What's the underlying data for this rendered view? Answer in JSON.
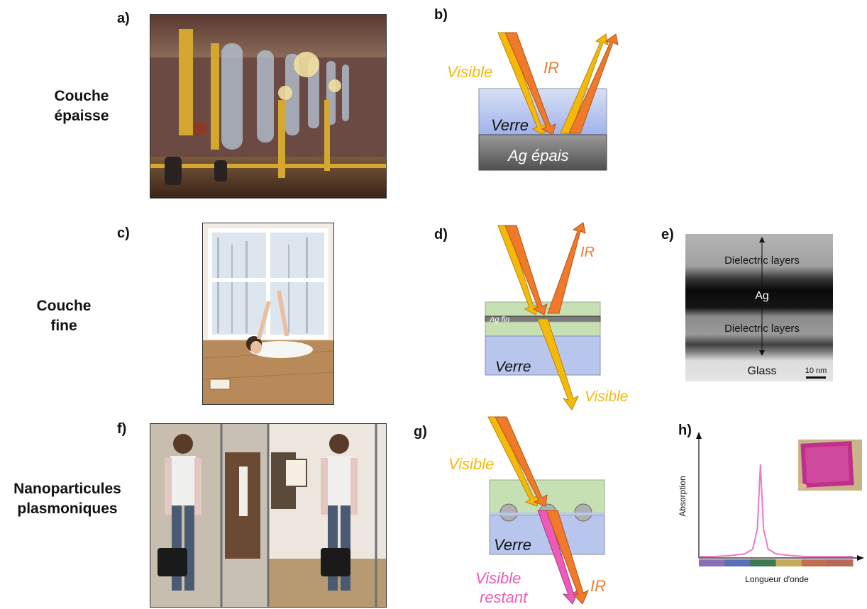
{
  "rows": [
    {
      "line1": "Couche",
      "line2": "épaisse"
    },
    {
      "line1": "Couche",
      "line2": "fine"
    },
    {
      "line1": "Nanoparticules",
      "line2": "plasmoniques"
    }
  ],
  "panels": {
    "a": "a)",
    "b": "b)",
    "c": "c)",
    "d": "d)",
    "e": "e)",
    "f": "f)",
    "g": "g)",
    "h": "h)"
  },
  "diagram_b": {
    "visible": "Visible",
    "ir": "IR",
    "glass": "Verre",
    "silver": "Ag épais"
  },
  "diagram_d": {
    "ir": "IR",
    "silver": "Ag fin",
    "glass": "Verre",
    "visible": "Visible"
  },
  "micrograph_e": {
    "top": "Dielectric layers",
    "middle": "Ag",
    "bottom": "Dielectric layers",
    "substrate": "Glass",
    "scale": "10 nm"
  },
  "diagram_g": {
    "visible": "Visible",
    "glass": "Verre",
    "remaining1": "Visible",
    "remaining2": "restant",
    "ir": "IR"
  },
  "chart_data": {
    "type": "line",
    "xlabel": "Longueur d'onde",
    "ylabel": "Absorption",
    "series": [
      {
        "x": [
          0,
          0.1,
          0.2,
          0.3,
          0.35,
          0.38,
          0.4,
          0.42,
          0.45,
          0.5,
          0.6,
          0.7,
          0.8,
          0.9,
          1.0
        ],
        "values": [
          0.0,
          0.0,
          0.01,
          0.03,
          0.08,
          0.3,
          1.0,
          0.3,
          0.08,
          0.03,
          0.01,
          0.0,
          0.0,
          0.0,
          0.0
        ]
      }
    ],
    "spectrum_bar_colors": [
      "#8a6fb8",
      "#5b6fb5",
      "#3f7a4f",
      "#c8a85a",
      "#c07050",
      "#b86a5a"
    ]
  },
  "colors": {
    "visible": "#f5b90a",
    "ir": "#ee7a2a",
    "pink": "#ee5ab8",
    "glass": "#b8c6ee",
    "dielectric": "#c6e0b4",
    "silver": "#6e6e6e"
  }
}
